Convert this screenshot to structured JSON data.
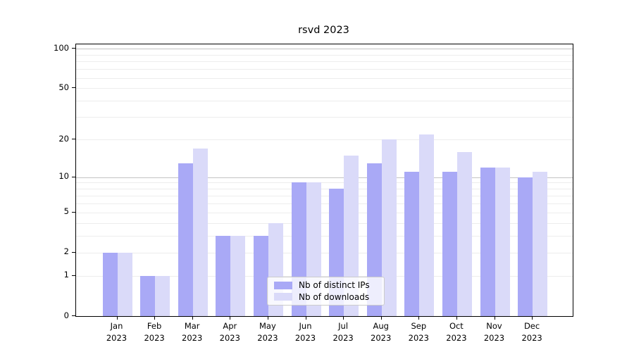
{
  "title": "rsvd 2023",
  "colors": {
    "bar_ips": "#a9a9f6",
    "bar_downloads": "#dadaf9",
    "grid_minor": "#ededed",
    "grid_major": "#c3c3c3",
    "spine": "#000000",
    "legend_border": "#cccccc",
    "text": "#000000"
  },
  "legend": {
    "items": [
      {
        "label": "Nb of distinct IPs",
        "color": "#a9a9f6"
      },
      {
        "label": "Nb of downloads",
        "color": "#dadaf9"
      }
    ]
  },
  "y_axis": {
    "tick_values": [
      0,
      1,
      2,
      5,
      10,
      20,
      50,
      100
    ],
    "minor_gridlines": [
      1,
      2,
      3,
      4,
      5,
      6,
      7,
      8,
      9,
      20,
      30,
      40,
      50,
      60,
      70,
      80,
      90
    ],
    "major_gridlines": [
      10,
      100
    ]
  },
  "x_axis": {
    "months": [
      "Jan",
      "Feb",
      "Mar",
      "Apr",
      "May",
      "Jun",
      "Jul",
      "Aug",
      "Sep",
      "Oct",
      "Nov",
      "Dec"
    ],
    "year": "2023"
  },
  "chart_data": {
    "type": "bar",
    "title": "rsvd 2023",
    "scale": "log1p",
    "categories": [
      "Jan 2023",
      "Feb 2023",
      "Mar 2023",
      "Apr 2023",
      "May 2023",
      "Jun 2023",
      "Jul 2023",
      "Aug 2023",
      "Sep 2023",
      "Oct 2023",
      "Nov 2023",
      "Dec 2023"
    ],
    "series": [
      {
        "name": "Nb of distinct IPs",
        "values": [
          2,
          1,
          13,
          3,
          3,
          9,
          8,
          13,
          11,
          11,
          12,
          10
        ]
      },
      {
        "name": "Nb of downloads",
        "values": [
          2,
          1,
          17,
          3,
          4,
          9,
          15,
          20,
          22,
          16,
          12,
          11
        ]
      }
    ],
    "y_ticks": [
      0,
      1,
      2,
      5,
      10,
      20,
      50,
      100
    ],
    "ylim": [
      0,
      107.6
    ],
    "grid": true,
    "legend_position": "lower-center"
  }
}
